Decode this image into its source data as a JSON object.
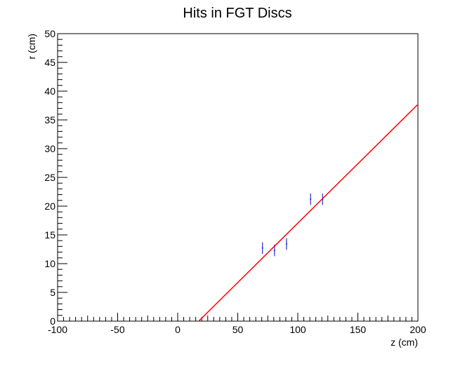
{
  "chart_data": {
    "type": "scatter",
    "title": "Hits in FGT Discs",
    "xlabel": "z (cm)",
    "ylabel": "r (cm)",
    "xlim": [
      -100,
      200
    ],
    "ylim": [
      0,
      50
    ],
    "x_ticks": [
      -100,
      -50,
      0,
      50,
      100,
      150,
      200
    ],
    "y_ticks": [
      0,
      5,
      10,
      15,
      20,
      25,
      30,
      35,
      40,
      45,
      50
    ],
    "grid": false,
    "legend": "none",
    "series": [
      {
        "kind": "points-with-error-bars",
        "color": "#0000cc",
        "points": [
          {
            "x": 70.6,
            "y": 12.7,
            "yerr": 1.0
          },
          {
            "x": 80.6,
            "y": 12.3,
            "yerr": 1.0
          },
          {
            "x": 90.6,
            "y": 13.4,
            "yerr": 1.0
          },
          {
            "x": 110.6,
            "y": 21.2,
            "yerr": 1.0
          },
          {
            "x": 120.6,
            "y": 21.2,
            "yerr": 1.0
          }
        ]
      },
      {
        "kind": "fit-line",
        "color": "#ff0000",
        "points": [
          {
            "x": 17.5,
            "y": 0
          },
          {
            "x": 199.5,
            "y": 37.6
          }
        ]
      }
    ]
  }
}
